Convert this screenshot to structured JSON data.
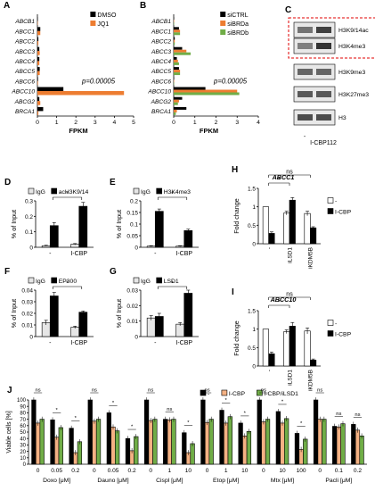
{
  "panels": {
    "A": {
      "letter": "A",
      "type": "horizontal-bar",
      "genes": [
        "ABCB1",
        "ABCC1",
        "ABCC2",
        "ABCC3",
        "ABCC4",
        "ABCC5",
        "ABCC6",
        "ABCC10",
        "ABCG2",
        "BRCA1"
      ],
      "series": [
        {
          "name": "DMSO",
          "color": "#000000",
          "values": [
            0.02,
            0.15,
            0.05,
            0.1,
            0.1,
            0.12,
            0.03,
            1.35,
            0.1,
            0.3
          ]
        },
        {
          "name": "JQ1",
          "color": "#ED7D31",
          "values": [
            0.02,
            0.15,
            0.05,
            0.12,
            0.1,
            0.12,
            0.03,
            4.5,
            0.15,
            0.05
          ]
        }
      ],
      "xticks": [
        "0",
        "1",
        "2",
        "3",
        "4",
        "5"
      ],
      "xmax": 5,
      "xlabel": "FPKM",
      "pval": "p=0.00005"
    },
    "B": {
      "letter": "B",
      "type": "horizontal-bar",
      "genes": [
        "ABCB1",
        "ABCC1",
        "ABCC2",
        "ABCC3",
        "ABCC4",
        "ABCC5",
        "ABCC6",
        "ABCC10",
        "ABCG2",
        "BRCA1"
      ],
      "series": [
        {
          "name": "siCTRL",
          "color": "#000000",
          "values": [
            0.02,
            0.25,
            0.05,
            0.4,
            0.15,
            0.25,
            0.02,
            1.5,
            0.4,
            0.6
          ]
        },
        {
          "name": "siBRDa",
          "color": "#ED7D31",
          "values": [
            0.02,
            0.3,
            0.05,
            0.6,
            0.2,
            0.3,
            0.02,
            3.0,
            0.25,
            0.15
          ]
        },
        {
          "name": "siBRDb",
          "color": "#70AD47",
          "values": [
            0.02,
            0.3,
            0.05,
            0.8,
            0.25,
            0.3,
            0.02,
            3.1,
            0.2,
            0.1
          ]
        }
      ],
      "xticks": [
        "0",
        "1",
        "2",
        "3",
        "4"
      ],
      "xmax": 4,
      "xlabel": "FPKM",
      "pval": "p=0.00005"
    },
    "C": {
      "letter": "C",
      "bands": [
        "H3K9/14ac",
        "H3K4me3",
        "H3K9me3",
        "H3K27me3",
        "H3"
      ],
      "lanes": [
        "-",
        "I-CBP112"
      ]
    },
    "D": {
      "letter": "D",
      "ylabel": "% of Input",
      "ymax": 0.3,
      "yticks": [
        "0",
        "0.1",
        "0.2",
        "0.3"
      ],
      "legend": [
        "IgG",
        "acH3K9/14"
      ],
      "groups": [
        {
          "label": "-",
          "values": [
            0.01,
            0.14
          ],
          "errors": [
            0.003,
            0.02
          ]
        },
        {
          "label": "I-CBP",
          "values": [
            0.02,
            0.265
          ],
          "errors": [
            0.004,
            0.025
          ]
        }
      ],
      "star": "*"
    },
    "E": {
      "letter": "E",
      "ylabel": "% of Input",
      "ymax": 0.2,
      "yticks": [
        "0",
        "0.05",
        "0.1",
        "0.15",
        "0.2"
      ],
      "legend": [
        "IgG",
        "H3K4me3"
      ],
      "groups": [
        {
          "label": "-",
          "values": [
            0.005,
            0.155
          ],
          "errors": [
            0.002,
            0.01
          ]
        },
        {
          "label": "I-CBP",
          "values": [
            0.005,
            0.072
          ],
          "errors": [
            0.002,
            0.006
          ]
        }
      ],
      "star": "*"
    },
    "F": {
      "letter": "F",
      "ylabel": "% of Input",
      "ymax": 0.04,
      "yticks": [
        "0",
        "0.01",
        "0.02",
        "0.03",
        "0.04"
      ],
      "legend": [
        "IgG",
        "EP300"
      ],
      "groups": [
        {
          "label": "-",
          "values": [
            0.012,
            0.035
          ],
          "errors": [
            0.002,
            0.003
          ]
        },
        {
          "label": "I-CBP",
          "values": [
            0.008,
            0.021
          ],
          "errors": [
            0.001,
            0.001
          ]
        }
      ],
      "star": "*"
    },
    "G": {
      "letter": "G",
      "ylabel": "% of Input",
      "ymax": 0.03,
      "yticks": [
        "0",
        "0.01",
        "0.02",
        "0.03"
      ],
      "legend": [
        "IgG",
        "LSD1"
      ],
      "groups": [
        {
          "label": "-",
          "values": [
            0.012,
            0.013
          ],
          "errors": [
            0.0015,
            0.002
          ]
        },
        {
          "label": "I-CBP",
          "values": [
            0.008,
            0.028
          ],
          "errors": [
            0.001,
            0.002
          ]
        }
      ],
      "star": "*"
    },
    "H": {
      "letter": "H",
      "title": "ABCC1",
      "ylabel": "Fold change",
      "ymax": 1.5,
      "yticks": [
        "0",
        "0.5",
        "1",
        "1.5"
      ],
      "legend": [
        "-",
        "I-CBP"
      ],
      "groups": [
        {
          "label": "-",
          "values": [
            1,
            0.28
          ],
          "errors": [
            0,
            0.04
          ]
        },
        {
          "label": "iLSD1",
          "values": [
            0.83,
            1.18
          ],
          "errors": [
            0.05,
            0.07
          ]
        },
        {
          "label": "iKDM5B",
          "values": [
            0.82,
            0.43
          ],
          "errors": [
            0.06,
            0.03
          ]
        }
      ],
      "sig": [
        "*",
        "ns"
      ]
    },
    "I": {
      "letter": "I",
      "title": "ABCC10",
      "ylabel": "Fold change",
      "ymax": 1.5,
      "yticks": [
        "0",
        "0.5",
        "1",
        "1.5"
      ],
      "legend": [
        "-",
        "I-CBP"
      ],
      "groups": [
        {
          "label": "-",
          "values": [
            1,
            0.33
          ],
          "errors": [
            0,
            0.05
          ]
        },
        {
          "label": "iLSD1",
          "values": [
            0.93,
            1.08
          ],
          "errors": [
            0.05,
            0.1
          ]
        },
        {
          "label": "iKDM5B",
          "values": [
            0.95,
            0.16
          ],
          "errors": [
            0.08,
            0.03
          ]
        }
      ],
      "sig": [
        "*",
        "ns"
      ]
    },
    "J": {
      "letter": "J",
      "ylabel": "Viable cells [%]",
      "ymax": 100,
      "yticks": [
        "0",
        "10",
        "20",
        "30",
        "40",
        "50",
        "60",
        "70",
        "80",
        "90",
        "100"
      ],
      "legend": [
        {
          "name": "-",
          "color": "#000000"
        },
        {
          "name": "I-CBP",
          "color": "#F4B183"
        },
        {
          "name": "I-CBP/iLSD1",
          "color": "#70AD47"
        }
      ],
      "drugs": [
        {
          "name": "Doxo [μM]",
          "doses": [
            "0",
            "0.05",
            "0.2"
          ],
          "values": [
            [
              100,
              64,
              70
            ],
            [
              69,
              42,
              57
            ],
            [
              56,
              18,
              35
            ]
          ],
          "stars": [
            "ns",
            "*",
            "*"
          ]
        },
        {
          "name": "Dauno [μM]",
          "doses": [
            "0",
            "0.05",
            "0.2"
          ],
          "values": [
            [
              100,
              67,
              70
            ],
            [
              80,
              58,
              52
            ],
            [
              40,
              21,
              43
            ]
          ],
          "stars": [
            "ns",
            "*",
            "*"
          ]
        },
        {
          "name": "Cispl [μM]",
          "doses": [
            "0",
            "1",
            "10"
          ],
          "values": [
            [
              100,
              68,
              70
            ],
            [
              70,
              69,
              70
            ],
            [
              49,
              18,
              32
            ]
          ],
          "stars": [
            "ns",
            "ns",
            "*"
          ]
        },
        {
          "name": "Etop [μM]",
          "doses": [
            "0",
            "1",
            "10"
          ],
          "values": [
            [
              100,
              65,
              70
            ],
            [
              84,
              64,
              74
            ],
            [
              64,
              44,
              51
            ]
          ],
          "stars": [
            "ns",
            "*",
            "*"
          ]
        },
        {
          "name": "Mtx [μM]",
          "doses": [
            "0",
            "10",
            "100"
          ],
          "values": [
            [
              100,
              66,
              70
            ],
            [
              82,
              64,
              71
            ],
            [
              48,
              23,
              39
            ]
          ],
          "stars": [
            "ns",
            "*",
            "*"
          ]
        },
        {
          "name": "Pacli [μM]",
          "doses": [
            "0",
            "0.1",
            "0.2"
          ],
          "values": [
            [
              100,
              70,
              70
            ],
            [
              59,
              58,
              63
            ],
            [
              62,
              53,
              44
            ]
          ],
          "stars": [
            "ns",
            "ns",
            "ns"
          ]
        }
      ]
    }
  },
  "chart_data": [
    {
      "type": "bar",
      "panel": "A",
      "orientation": "horizontal",
      "categories": [
        "ABCB1",
        "ABCC1",
        "ABCC2",
        "ABCC3",
        "ABCC4",
        "ABCC5",
        "ABCC6",
        "ABCC10",
        "ABCG2",
        "BRCA1"
      ],
      "series": [
        {
          "name": "DMSO",
          "values": [
            0.02,
            0.15,
            0.05,
            0.1,
            0.1,
            0.12,
            0.03,
            1.35,
            0.1,
            0.3
          ]
        },
        {
          "name": "JQ1",
          "values": [
            0.02,
            0.15,
            0.05,
            0.12,
            0.1,
            0.12,
            0.03,
            4.5,
            0.15,
            0.05
          ]
        }
      ],
      "xlabel": "FPKM",
      "xlim": [
        0,
        5
      ]
    },
    {
      "type": "bar",
      "panel": "B",
      "orientation": "horizontal",
      "categories": [
        "ABCB1",
        "ABCC1",
        "ABCC2",
        "ABCC3",
        "ABCC4",
        "ABCC5",
        "ABCC6",
        "ABCC10",
        "ABCG2",
        "BRCA1"
      ],
      "series": [
        {
          "name": "siCTRL",
          "values": [
            0.02,
            0.25,
            0.05,
            0.4,
            0.15,
            0.25,
            0.02,
            1.5,
            0.4,
            0.6
          ]
        },
        {
          "name": "siBRDa",
          "values": [
            0.02,
            0.3,
            0.05,
            0.6,
            0.2,
            0.3,
            0.02,
            3.0,
            0.25,
            0.15
          ]
        },
        {
          "name": "siBRDb",
          "values": [
            0.02,
            0.3,
            0.05,
            0.8,
            0.25,
            0.3,
            0.02,
            3.1,
            0.2,
            0.1
          ]
        }
      ],
      "xlabel": "FPKM",
      "xlim": [
        0,
        4
      ]
    },
    {
      "type": "bar",
      "panel": "D",
      "categories": [
        "-",
        "I-CBP"
      ],
      "series": [
        {
          "name": "IgG",
          "values": [
            0.01,
            0.02
          ]
        },
        {
          "name": "acH3K9/14",
          "values": [
            0.14,
            0.265
          ]
        }
      ],
      "ylabel": "% of Input",
      "ylim": [
        0,
        0.3
      ]
    },
    {
      "type": "bar",
      "panel": "E",
      "categories": [
        "-",
        "I-CBP"
      ],
      "series": [
        {
          "name": "IgG",
          "values": [
            0.005,
            0.005
          ]
        },
        {
          "name": "H3K4me3",
          "values": [
            0.155,
            0.072
          ]
        }
      ],
      "ylabel": "% of Input",
      "ylim": [
        0,
        0.2
      ]
    },
    {
      "type": "bar",
      "panel": "F",
      "categories": [
        "-",
        "I-CBP"
      ],
      "series": [
        {
          "name": "IgG",
          "values": [
            0.012,
            0.008
          ]
        },
        {
          "name": "EP300",
          "values": [
            0.035,
            0.021
          ]
        }
      ],
      "ylabel": "% of Input",
      "ylim": [
        0,
        0.04
      ]
    },
    {
      "type": "bar",
      "panel": "G",
      "categories": [
        "-",
        "I-CBP"
      ],
      "series": [
        {
          "name": "IgG",
          "values": [
            0.012,
            0.008
          ]
        },
        {
          "name": "LSD1",
          "values": [
            0.013,
            0.028
          ]
        }
      ],
      "ylabel": "% of Input",
      "ylim": [
        0,
        0.03
      ]
    },
    {
      "type": "bar",
      "panel": "H",
      "title": "ABCC1",
      "categories": [
        "-",
        "iLSD1",
        "iKDM5B"
      ],
      "series": [
        {
          "name": "-",
          "values": [
            1,
            0.83,
            0.82
          ]
        },
        {
          "name": "I-CBP",
          "values": [
            0.28,
            1.18,
            0.43
          ]
        }
      ],
      "ylabel": "Fold change",
      "ylim": [
        0,
        1.5
      ]
    },
    {
      "type": "bar",
      "panel": "I",
      "title": "ABCC10",
      "categories": [
        "-",
        "iLSD1",
        "iKDM5B"
      ],
      "series": [
        {
          "name": "-",
          "values": [
            1,
            0.93,
            0.95
          ]
        },
        {
          "name": "I-CBP",
          "values": [
            0.33,
            1.08,
            0.16
          ]
        }
      ],
      "ylabel": "Fold change",
      "ylim": [
        0,
        1.5
      ]
    },
    {
      "type": "bar",
      "panel": "J",
      "categories": [
        "Doxo 0",
        "Doxo 0.05",
        "Doxo 0.2",
        "Dauno 0",
        "Dauno 0.05",
        "Dauno 0.2",
        "Cispl 0",
        "Cispl 1",
        "Cispl 10",
        "Etop 0",
        "Etop 1",
        "Etop 10",
        "Mtx 0",
        "Mtx 10",
        "Mtx 100",
        "Pacli 0",
        "Pacli 0.1",
        "Pacli 0.2"
      ],
      "series": [
        {
          "name": "-",
          "values": [
            100,
            69,
            56,
            100,
            80,
            40,
            100,
            70,
            49,
            100,
            84,
            64,
            100,
            82,
            48,
            100,
            59,
            62
          ]
        },
        {
          "name": "I-CBP",
          "values": [
            64,
            42,
            18,
            67,
            58,
            21,
            68,
            69,
            18,
            65,
            64,
            44,
            66,
            64,
            23,
            70,
            58,
            53
          ]
        },
        {
          "name": "I-CBP/iLSD1",
          "values": [
            70,
            57,
            35,
            70,
            52,
            43,
            70,
            70,
            32,
            70,
            74,
            51,
            70,
            71,
            39,
            70,
            63,
            44
          ]
        }
      ],
      "ylabel": "Viable cells [%]",
      "ylim": [
        0,
        100
      ]
    }
  ]
}
